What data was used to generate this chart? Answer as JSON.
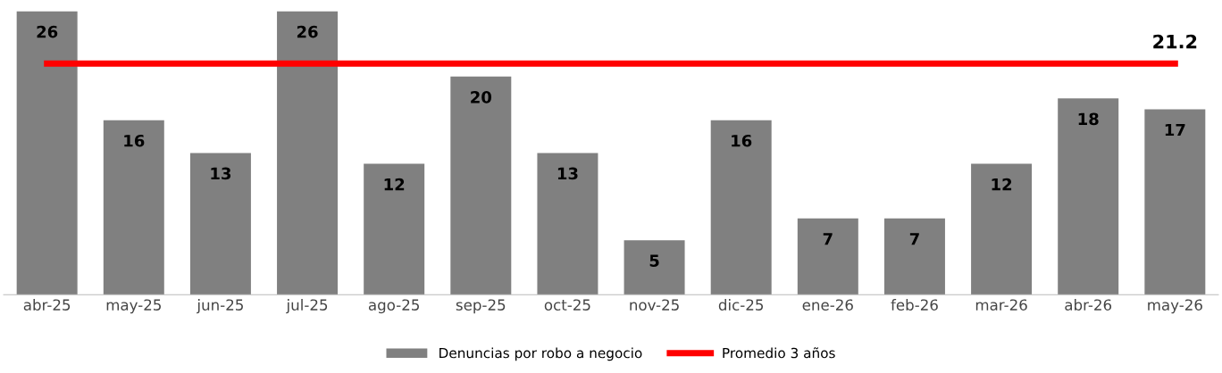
{
  "chart_data": {
    "type": "bar",
    "categories": [
      "abr-25",
      "may-25",
      "jun-25",
      "jul-25",
      "ago-25",
      "sep-25",
      "oct-25",
      "nov-25",
      "dic-25",
      "ene-26",
      "feb-26",
      "mar-26",
      "abr-26",
      "may-26"
    ],
    "series": [
      {
        "name": "Denuncias por robo a negocio",
        "color": "#808080",
        "values": [
          26,
          16,
          13,
          26,
          12,
          20,
          13,
          5,
          16,
          7,
          7,
          12,
          18,
          17
        ],
        "value_labels": [
          "26",
          "16",
          "13",
          "26",
          "12",
          "20",
          "13",
          "5",
          "16",
          "7",
          "7",
          "12",
          "18",
          "17"
        ]
      },
      {
        "name": "Promedio 3 años",
        "type": "line",
        "color": "#ff0000",
        "values": [
          21.2,
          21.2,
          21.2,
          21.2,
          21.2,
          21.2,
          21.2,
          21.2,
          21.2,
          21.2,
          21.2,
          21.2,
          21.2,
          21.2
        ],
        "value_labels": [
          null,
          null,
          null,
          null,
          null,
          null,
          null,
          null,
          null,
          null,
          null,
          null,
          null,
          "21.2"
        ]
      }
    ],
    "ylim": [
      0,
      26
    ],
    "tick_labels": "x",
    "grid": false,
    "legend": "bottom",
    "marker": "none",
    "line_style": "solid"
  }
}
